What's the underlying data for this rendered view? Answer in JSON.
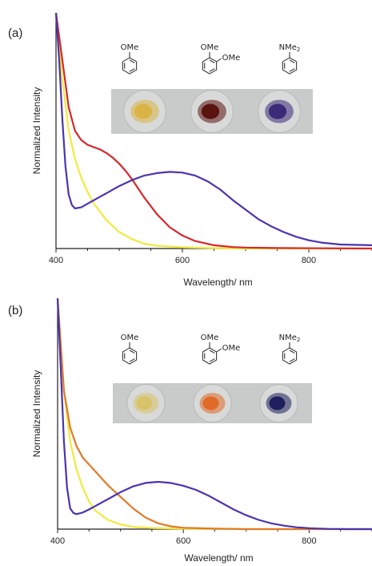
{
  "chart_data": [
    {
      "panel": "(a)",
      "type": "line",
      "xlabel": "Wavelength/ nm",
      "ylabel": "Normalized Intensity",
      "xlim": [
        400,
        900
      ],
      "ylim": [
        0,
        1
      ],
      "xticks": [
        "400",
        "600",
        "800"
      ],
      "grid": false,
      "molecules": [
        {
          "label": "OMe"
        },
        {
          "label1": "OMe",
          "label2": "OMe"
        },
        {
          "label": "NMe2",
          "label_main": "NMe",
          "label_sub": "2"
        }
      ],
      "photo_colors": [
        "#d9b445",
        "#5a1410",
        "#3a2a78"
      ],
      "series": [
        {
          "color": "#f2ea3c",
          "x": [
            400,
            410,
            420,
            430,
            440,
            450,
            460,
            480,
            500,
            520,
            540,
            560,
            600,
            650,
            700,
            900
          ],
          "y": [
            1.0,
            0.72,
            0.5,
            0.38,
            0.3,
            0.24,
            0.19,
            0.12,
            0.07,
            0.04,
            0.02,
            0.012,
            0.005,
            0.002,
            0.0,
            0.0
          ]
        },
        {
          "color": "#d8262a",
          "x": [
            400,
            410,
            420,
            430,
            440,
            450,
            460,
            470,
            480,
            490,
            500,
            510,
            520,
            530,
            540,
            560,
            580,
            600,
            620,
            650,
            680,
            700,
            750,
            900
          ],
          "y": [
            1.0,
            0.8,
            0.6,
            0.5,
            0.46,
            0.44,
            0.43,
            0.42,
            0.405,
            0.385,
            0.36,
            0.33,
            0.295,
            0.255,
            0.215,
            0.145,
            0.09,
            0.055,
            0.032,
            0.014,
            0.006,
            0.004,
            0.002,
            0.0
          ]
        },
        {
          "color": "#4a34b0",
          "x": [
            400,
            405,
            410,
            415,
            420,
            425,
            430,
            440,
            450,
            460,
            480,
            500,
            520,
            540,
            560,
            580,
            600,
            620,
            640,
            660,
            680,
            700,
            720,
            740,
            760,
            780,
            800,
            820,
            850,
            900
          ],
          "y": [
            1.0,
            0.8,
            0.55,
            0.35,
            0.23,
            0.185,
            0.17,
            0.175,
            0.19,
            0.205,
            0.235,
            0.265,
            0.29,
            0.31,
            0.32,
            0.325,
            0.322,
            0.31,
            0.285,
            0.25,
            0.205,
            0.165,
            0.125,
            0.095,
            0.07,
            0.05,
            0.035,
            0.025,
            0.017,
            0.014
          ]
        }
      ]
    },
    {
      "panel": "(b)",
      "type": "line",
      "xlabel": "Wavelength/ nm",
      "ylabel": "Normalized Intensity",
      "xlim": [
        400,
        900
      ],
      "ylim": [
        0,
        1
      ],
      "xticks": [
        "400",
        "600",
        "800"
      ],
      "grid": false,
      "molecules": [
        {
          "label": "OMe"
        },
        {
          "label1": "OMe",
          "label2": "OMe"
        },
        {
          "label": "NMe2",
          "label_main": "NMe",
          "label_sub": "2"
        }
      ],
      "photo_colors": [
        "#d8c36a",
        "#e06a28",
        "#1e1f5c"
      ],
      "series": [
        {
          "color": "#f2ea3c",
          "x": [
            400,
            410,
            420,
            430,
            440,
            450,
            460,
            480,
            500,
            520,
            550,
            600,
            700,
            900
          ],
          "y": [
            1.0,
            0.6,
            0.38,
            0.26,
            0.18,
            0.12,
            0.08,
            0.04,
            0.02,
            0.01,
            0.005,
            0.002,
            0.0,
            0.0
          ]
        },
        {
          "color": "#e07a2a",
          "x": [
            400,
            410,
            420,
            430,
            440,
            450,
            460,
            480,
            500,
            520,
            540,
            560,
            580,
            600,
            650,
            700,
            900
          ],
          "y": [
            1.0,
            0.6,
            0.44,
            0.36,
            0.31,
            0.28,
            0.25,
            0.19,
            0.14,
            0.09,
            0.05,
            0.025,
            0.012,
            0.006,
            0.002,
            0.0,
            0.0
          ]
        },
        {
          "color": "#4a34b0",
          "x": [
            400,
            405,
            410,
            415,
            420,
            425,
            430,
            440,
            450,
            460,
            480,
            500,
            520,
            540,
            560,
            580,
            600,
            620,
            640,
            660,
            680,
            700,
            720,
            740,
            760,
            780,
            800,
            830,
            860,
            900
          ],
          "y": [
            1.0,
            0.7,
            0.38,
            0.18,
            0.09,
            0.07,
            0.065,
            0.072,
            0.085,
            0.1,
            0.13,
            0.16,
            0.185,
            0.2,
            0.205,
            0.2,
            0.188,
            0.17,
            0.145,
            0.115,
            0.085,
            0.06,
            0.04,
            0.025,
            0.015,
            0.008,
            0.004,
            0.001,
            0.0,
            0.0
          ]
        }
      ]
    }
  ]
}
